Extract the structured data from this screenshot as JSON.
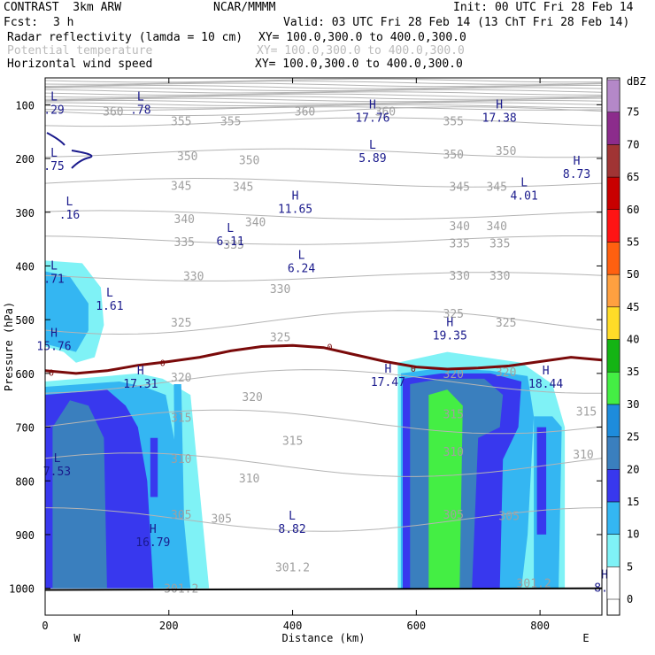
{
  "header": {
    "model": "CONTRAST  3km ARW",
    "org": "NCAR/MMMM",
    "init": "Init: 00 UTC Fri 28 Feb 14",
    "fcst_label": "Fcst:",
    "fcst_value": "3 h",
    "valid": "Valid: 03 UTC Fri 28 Feb 14 (13 ChT Fri 28 Feb 14)",
    "field1": "Radar reflectivity (lamda = 10 cm)",
    "field1_xy": "XY= 100.0,300.0 to 400.0,300.0",
    "field2": "Potential temperature",
    "field2_xy": "XY= 100.0,300.0 to 400.0,300.0",
    "field3": "Horizontal wind speed",
    "field3_xy": "XY= 100.0,300.0 to 400.0,300.0"
  },
  "colors": {
    "theta": "#b4b4b4",
    "theta_label": "#a0a0a0",
    "freezing": "#7a0a0a",
    "hl": "#1a1a8c"
  },
  "chart_data": {
    "type": "heatmap",
    "title": "Radar reflectivity cross-section",
    "xlabel": "Distance (km)",
    "ylabel": "Pressure (hPa)",
    "xlim": [
      0,
      900
    ],
    "ylim": [
      1050,
      50
    ],
    "xticks": [
      0,
      200,
      400,
      600,
      800
    ],
    "yticks": [
      100,
      200,
      300,
      400,
      500,
      600,
      700,
      800,
      900,
      1000
    ],
    "x_end_labels": {
      "left": "W",
      "right": "E"
    },
    "colorbar": {
      "unit": "dBZ",
      "levels": [
        0,
        5,
        10,
        15,
        20,
        25,
        30,
        35,
        40,
        45,
        50,
        55,
        60,
        65,
        70,
        75
      ],
      "colors": [
        "#ffffff",
        "#7ff2f6",
        "#34b6f2",
        "#3838ee",
        "#3a7fbe",
        "#1e8cdc",
        "#44ee44",
        "#14b414",
        "#ffdc28",
        "#ffa040",
        "#ff6010",
        "#ff1414",
        "#c80000",
        "#a03434",
        "#8c2c8c",
        "#b488c8"
      ]
    },
    "reflectivity_cells": [
      {
        "name": "west-anvil",
        "level": 5,
        "pts": [
          [
            0,
            390
          ],
          [
            60,
            395
          ],
          [
            90,
            440
          ],
          [
            95,
            510
          ],
          [
            80,
            570
          ],
          [
            50,
            580
          ],
          [
            30,
            560
          ],
          [
            0,
            550
          ]
        ]
      },
      {
        "name": "west-anvil-core",
        "level": 10,
        "pts": [
          [
            0,
            410
          ],
          [
            40,
            420
          ],
          [
            70,
            470
          ],
          [
            70,
            520
          ],
          [
            50,
            560
          ],
          [
            0,
            545
          ]
        ]
      },
      {
        "name": "west-main",
        "level": 5,
        "pts": [
          [
            0,
            615
          ],
          [
            150,
            600
          ],
          [
            190,
            610
          ],
          [
            235,
            640
          ],
          [
            265,
            1000
          ],
          [
            0,
            1000
          ]
        ]
      },
      {
        "name": "west-main",
        "level": 10,
        "pts": [
          [
            0,
            625
          ],
          [
            120,
            615
          ],
          [
            160,
            625
          ],
          [
            195,
            640
          ],
          [
            215,
            760
          ],
          [
            235,
            1000
          ],
          [
            0,
            1000
          ]
        ]
      },
      {
        "name": "west-main",
        "level": 15,
        "pts": [
          [
            0,
            640
          ],
          [
            100,
            630
          ],
          [
            130,
            660
          ],
          [
            150,
            700
          ],
          [
            165,
            800
          ],
          [
            175,
            1000
          ],
          [
            0,
            1000
          ]
        ]
      },
      {
        "name": "west-main",
        "level": 20,
        "pts": [
          [
            12,
            700
          ],
          [
            40,
            650
          ],
          [
            70,
            660
          ],
          [
            95,
            720
          ],
          [
            100,
            1000
          ],
          [
            12,
            1000
          ]
        ]
      },
      {
        "name": "west-streak",
        "level": 15,
        "pts": [
          [
            170,
            720
          ],
          [
            182,
            720
          ],
          [
            182,
            830
          ],
          [
            170,
            830
          ]
        ]
      },
      {
        "name": "west-strip",
        "level": 10,
        "pts": [
          [
            208,
            620
          ],
          [
            220,
            620
          ],
          [
            225,
            900
          ],
          [
            210,
            900
          ]
        ]
      },
      {
        "name": "east-main",
        "level": 5,
        "pts": [
          [
            570,
            580
          ],
          [
            650,
            560
          ],
          [
            770,
            580
          ],
          [
            820,
            620
          ],
          [
            840,
            700
          ],
          [
            840,
            1000
          ],
          [
            570,
            1000
          ]
        ]
      },
      {
        "name": "east-main",
        "level": 10,
        "pts": [
          [
            575,
            600
          ],
          [
            640,
            590
          ],
          [
            720,
            595
          ],
          [
            780,
            605
          ],
          [
            790,
            680
          ],
          [
            780,
            900
          ],
          [
            770,
            1000
          ],
          [
            575,
            1000
          ]
        ]
      },
      {
        "name": "east-main",
        "level": 15,
        "pts": [
          [
            578,
            610
          ],
          [
            640,
            600
          ],
          [
            720,
            600
          ],
          [
            770,
            615
          ],
          [
            765,
            700
          ],
          [
            740,
            760
          ],
          [
            735,
            1000
          ],
          [
            578,
            1000
          ]
        ]
      },
      {
        "name": "east-main",
        "level": 20,
        "pts": [
          [
            590,
            620
          ],
          [
            640,
            610
          ],
          [
            710,
            610
          ],
          [
            740,
            640
          ],
          [
            735,
            700
          ],
          [
            700,
            720
          ],
          [
            690,
            1000
          ],
          [
            590,
            1000
          ]
        ]
      },
      {
        "name": "east-core",
        "level": 30,
        "pts": [
          [
            620,
            640
          ],
          [
            650,
            630
          ],
          [
            675,
            660
          ],
          [
            670,
            1000
          ],
          [
            620,
            1000
          ]
        ]
      },
      {
        "name": "east-east-cells",
        "level": 10,
        "pts": [
          [
            790,
            680
          ],
          [
            820,
            680
          ],
          [
            835,
            700
          ],
          [
            830,
            1000
          ],
          [
            790,
            1000
          ]
        ]
      },
      {
        "name": "east-east-cells",
        "level": 15,
        "pts": [
          [
            795,
            700
          ],
          [
            810,
            700
          ],
          [
            810,
            900
          ],
          [
            795,
            900
          ]
        ]
      }
    ],
    "theta_labels": [
      {
        "v": "360",
        "x": 110,
        "p": 112
      },
      {
        "v": "355",
        "x": 220,
        "p": 130
      },
      {
        "v": "355",
        "x": 300,
        "p": 130
      },
      {
        "v": "360",
        "x": 420,
        "p": 112
      },
      {
        "v": "360",
        "x": 550,
        "p": 112
      },
      {
        "v": "355",
        "x": 660,
        "p": 130
      },
      {
        "v": "350",
        "x": 230,
        "p": 195
      },
      {
        "v": "350",
        "x": 330,
        "p": 202
      },
      {
        "v": "350",
        "x": 660,
        "p": 192
      },
      {
        "v": "350",
        "x": 745,
        "p": 185
      },
      {
        "v": "345",
        "x": 220,
        "p": 250
      },
      {
        "v": "345",
        "x": 320,
        "p": 252
      },
      {
        "v": "345",
        "x": 670,
        "p": 252
      },
      {
        "v": "345",
        "x": 730,
        "p": 252
      },
      {
        "v": "340",
        "x": 225,
        "p": 312
      },
      {
        "v": "340",
        "x": 340,
        "p": 318
      },
      {
        "v": "340",
        "x": 670,
        "p": 325
      },
      {
        "v": "340",
        "x": 730,
        "p": 325
      },
      {
        "v": "335",
        "x": 225,
        "p": 355
      },
      {
        "v": "335",
        "x": 305,
        "p": 360
      },
      {
        "v": "335",
        "x": 670,
        "p": 357
      },
      {
        "v": "335",
        "x": 735,
        "p": 357
      },
      {
        "v": "330",
        "x": 240,
        "p": 418
      },
      {
        "v": "330",
        "x": 380,
        "p": 442
      },
      {
        "v": "330",
        "x": 670,
        "p": 417
      },
      {
        "v": "330",
        "x": 735,
        "p": 417
      },
      {
        "v": "325",
        "x": 220,
        "p": 505
      },
      {
        "v": "325",
        "x": 380,
        "p": 532
      },
      {
        "v": "325",
        "x": 660,
        "p": 488
      },
      {
        "v": "325",
        "x": 745,
        "p": 505
      },
      {
        "v": "320",
        "x": 220,
        "p": 607
      },
      {
        "v": "320",
        "x": 335,
        "p": 643
      },
      {
        "v": "320",
        "x": 660,
        "p": 600
      },
      {
        "v": "320",
        "x": 745,
        "p": 597
      },
      {
        "v": "315",
        "x": 220,
        "p": 682
      },
      {
        "v": "315",
        "x": 400,
        "p": 725
      },
      {
        "v": "315",
        "x": 660,
        "p": 675
      },
      {
        "v": "315",
        "x": 875,
        "p": 670
      },
      {
        "v": "310",
        "x": 220,
        "p": 758
      },
      {
        "v": "310",
        "x": 330,
        "p": 795
      },
      {
        "v": "310",
        "x": 660,
        "p": 745
      },
      {
        "v": "310",
        "x": 870,
        "p": 750
      },
      {
        "v": "305",
        "x": 220,
        "p": 862
      },
      {
        "v": "305",
        "x": 285,
        "p": 870
      },
      {
        "v": "305",
        "x": 660,
        "p": 862
      },
      {
        "v": "305",
        "x": 750,
        "p": 865
      },
      {
        "v": "301.2",
        "x": 400,
        "p": 960
      },
      {
        "v": "301.2",
        "x": 790,
        "p": 990
      },
      {
        "v": "301.2",
        "x": 220,
        "p": 1000
      }
    ],
    "theta_contours": [
      360,
      355,
      350,
      345,
      340,
      335,
      330,
      325,
      320,
      315,
      310,
      305
    ],
    "freezing_level": {
      "label": "0",
      "points": [
        [
          0,
          595
        ],
        [
          50,
          600
        ],
        [
          100,
          595
        ],
        [
          150,
          585
        ],
        [
          200,
          578
        ],
        [
          250,
          570
        ],
        [
          300,
          558
        ],
        [
          350,
          550
        ],
        [
          400,
          548
        ],
        [
          450,
          552
        ],
        [
          500,
          565
        ],
        [
          550,
          578
        ],
        [
          600,
          588
        ],
        [
          650,
          592
        ],
        [
          700,
          590
        ],
        [
          750,
          586
        ],
        [
          800,
          578
        ],
        [
          850,
          570
        ],
        [
          900,
          575
        ]
      ]
    },
    "wind_extrema": [
      {
        "t": "L",
        "v": ".29",
        "x": 0,
        "p": 105
      },
      {
        "t": "L",
        "v": ".78",
        "x": 140,
        "p": 105
      },
      {
        "t": "H",
        "v": "17.76",
        "x": 515,
        "p": 120
      },
      {
        "t": "H",
        "v": "17.38",
        "x": 720,
        "p": 120
      },
      {
        "t": "L",
        "v": ".75",
        "x": 0,
        "p": 210
      },
      {
        "t": "L",
        "v": "5.89",
        "x": 515,
        "p": 195
      },
      {
        "t": "L",
        "v": ".16",
        "x": 25,
        "p": 300
      },
      {
        "t": "H",
        "v": "8.73",
        "x": 845,
        "p": 225
      },
      {
        "t": "L",
        "v": "4.01",
        "x": 760,
        "p": 265
      },
      {
        "t": "H",
        "v": "11.65",
        "x": 390,
        "p": 290
      },
      {
        "t": "L",
        "v": "6.11",
        "x": 285,
        "p": 350
      },
      {
        "t": "L",
        "v": "6.24",
        "x": 400,
        "p": 400
      },
      {
        "t": "L",
        "v": ".71",
        "x": 0,
        "p": 420
      },
      {
        "t": "L",
        "v": "1.61",
        "x": 90,
        "p": 470
      },
      {
        "t": "H",
        "v": "19.35",
        "x": 640,
        "p": 525
      },
      {
        "t": "H",
        "v": "15.76",
        "x": 0,
        "p": 545
      },
      {
        "t": "H",
        "v": "17.31",
        "x": 140,
        "p": 615
      },
      {
        "t": "H",
        "v": "17.47",
        "x": 540,
        "p": 612
      },
      {
        "t": "H",
        "v": "18.44",
        "x": 795,
        "p": 615
      },
      {
        "t": "L",
        "v": "7.53",
        "x": 5,
        "p": 778
      },
      {
        "t": "L",
        "v": "8.82",
        "x": 385,
        "p": 885
      },
      {
        "t": "H",
        "v": "16.79",
        "x": 160,
        "p": 910
      },
      {
        "t": "H",
        "v": "8.9",
        "x": 890,
        "p": 995
      }
    ]
  }
}
